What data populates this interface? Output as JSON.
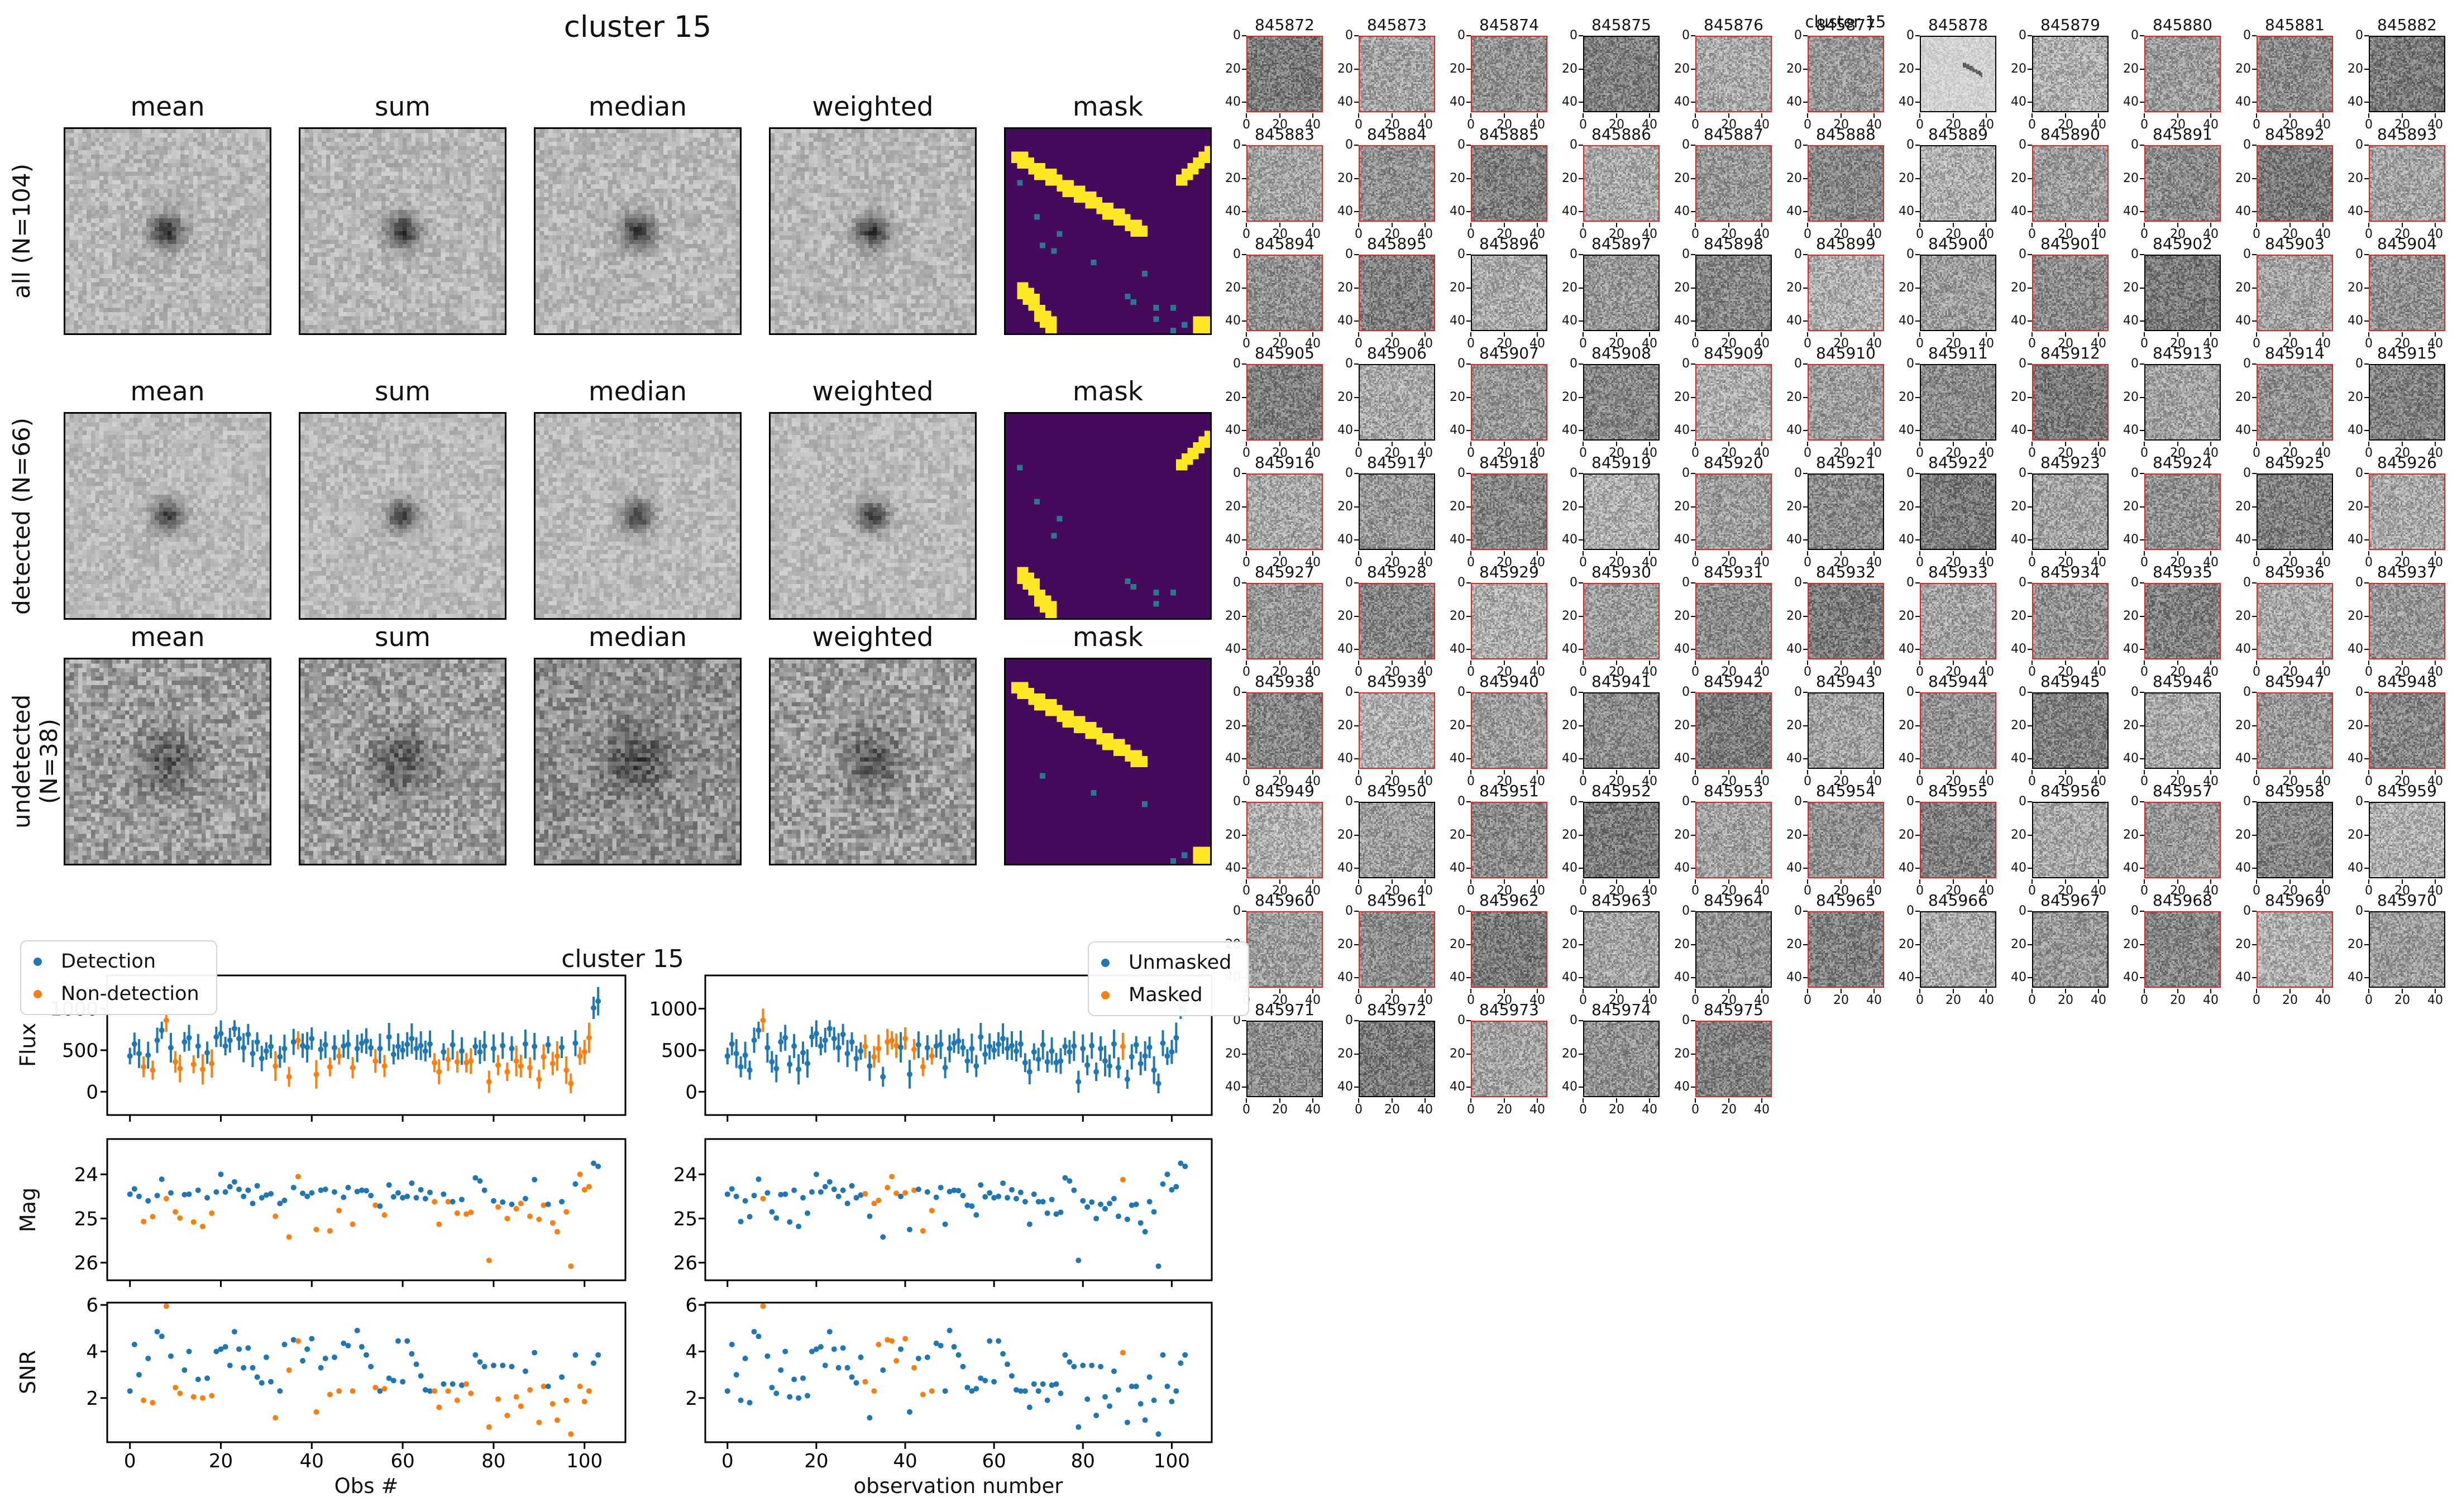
{
  "page": {
    "background": "#ffffff"
  },
  "left_figure": {
    "title": "cluster 15",
    "col_headers": [
      "mean",
      "sum",
      "median",
      "weighted",
      "mask"
    ],
    "rows": [
      {
        "label": "all (N=104)"
      },
      {
        "label": "detected (N=66)"
      },
      {
        "label": "undetected (N=38)"
      }
    ],
    "noise_rows": [
      {
        "base": 0.72,
        "noise": 0.1,
        "amp": 0.52,
        "sigma": 2.7
      },
      {
        "base": 0.73,
        "noise": 0.09,
        "amp": 0.48,
        "sigma": 2.5
      },
      {
        "base": 0.62,
        "noise": 0.17,
        "amp": 0.26,
        "sigma": 5.0
      }
    ]
  },
  "mask": {
    "colors": {
      "bg": "#450a5c",
      "streak": "#fde724",
      "dot": "#2a788e"
    },
    "streaks": {
      "main": [
        1,
        4,
        23,
        17
      ],
      "tr": [
        30,
        8,
        35,
        3
      ],
      "bl": [
        2,
        27,
        7,
        34
      ]
    },
    "corner": [
      33,
      33,
      3,
      3
    ],
    "rows": [
      {
        "streaks": [
          "main",
          "tr",
          "bl"
        ],
        "corner": true,
        "dots": [
          [
            2,
            9
          ],
          [
            5,
            15
          ],
          [
            9,
            18
          ],
          [
            6,
            20
          ],
          [
            8,
            21
          ],
          [
            15,
            23
          ],
          [
            24,
            25
          ],
          [
            21,
            29
          ],
          [
            22,
            30
          ],
          [
            26,
            31
          ],
          [
            29,
            31
          ],
          [
            26,
            33
          ],
          [
            31,
            34
          ],
          [
            29,
            35
          ]
        ]
      },
      {
        "streaks": [
          "tr",
          "bl"
        ],
        "corner": false,
        "dots": [
          [
            2,
            9
          ],
          [
            5,
            15
          ],
          [
            9,
            18
          ],
          [
            8,
            21
          ],
          [
            21,
            29
          ],
          [
            22,
            30
          ],
          [
            26,
            31
          ],
          [
            29,
            31
          ],
          [
            26,
            33
          ]
        ]
      },
      {
        "streaks": [
          "main"
        ],
        "corner": true,
        "dots": [
          [
            6,
            20
          ],
          [
            15,
            23
          ],
          [
            24,
            25
          ],
          [
            31,
            34
          ],
          [
            29,
            35
          ]
        ]
      }
    ]
  },
  "chart_data": {
    "type": "scatter",
    "title": "cluster 15",
    "ylabels": [
      "Flux",
      "Mag",
      "SNR"
    ],
    "xlabel_left": "Obs #",
    "xlabel_right": "observation number",
    "legend_left": [
      "Detection",
      "Non-detection"
    ],
    "legend_right": [
      "Unmasked",
      "Masked"
    ],
    "colors": {
      "detection": "#1f77b4",
      "nondetection": "#ff7f0e"
    },
    "yticks": {
      "flux": [
        0,
        500,
        1000
      ],
      "mag": [
        24,
        25,
        26
      ],
      "snr": [
        2,
        4,
        6
      ]
    },
    "xticks": [
      0,
      20,
      40,
      60,
      80,
      100
    ],
    "ylims": {
      "flux": [
        -280,
        1400
      ],
      "mag_top_to_bottom": [
        23.2,
        26.4
      ],
      "snr": [
        0.1,
        6.1
      ]
    },
    "xlim": [
      -5,
      109
    ],
    "columns": [
      "flux",
      "flux_err",
      "mag",
      "snr",
      "detected",
      "masked"
    ],
    "obs": [
      [
        430,
        100,
        24.45,
        2.3,
        1,
        0
      ],
      [
        575,
        137,
        24.33,
        4.3,
        1,
        0
      ],
      [
        460,
        174,
        24.5,
        3.0,
        1,
        0
      ],
      [
        300,
        126,
        25.07,
        1.9,
        0,
        0
      ],
      [
        440,
        163,
        24.6,
        3.7,
        1,
        0
      ],
      [
        260,
        115,
        24.96,
        1.8,
        0,
        0
      ],
      [
        620,
        152,
        24.48,
        4.85,
        1,
        0
      ],
      [
        740,
        104,
        24.11,
        4.65,
        1,
        0
      ],
      [
        860,
        141,
        24.55,
        5.95,
        0,
        1
      ],
      [
        530,
        178,
        24.42,
        3.8,
        1,
        0
      ],
      [
        360,
        130,
        24.85,
        2.45,
        0,
        0
      ],
      [
        280,
        167,
        24.99,
        2.2,
        0,
        0
      ],
      [
        600,
        119,
        24.46,
        3.2,
        1,
        0
      ],
      [
        650,
        156,
        24.45,
        4.0,
        1,
        0
      ],
      [
        330,
        108,
        25.08,
        2.05,
        0,
        0
      ],
      [
        550,
        145,
        24.36,
        2.8,
        1,
        0
      ],
      [
        270,
        182,
        25.18,
        2.0,
        0,
        0
      ],
      [
        470,
        134,
        24.53,
        2.85,
        1,
        0
      ],
      [
        340,
        171,
        24.88,
        2.1,
        0,
        0
      ],
      [
        660,
        123,
        24.4,
        4.0,
        1,
        0
      ],
      [
        700,
        160,
        24.0,
        4.1,
        1,
        0
      ],
      [
        550,
        112,
        24.4,
        4.2,
        1,
        0
      ],
      [
        620,
        149,
        24.28,
        3.4,
        1,
        0
      ],
      [
        760,
        101,
        24.17,
        4.85,
        1,
        0
      ],
      [
        640,
        138,
        24.34,
        4.1,
        1,
        0
      ],
      [
        530,
        175,
        24.5,
        3.3,
        1,
        0
      ],
      [
        690,
        127,
        24.36,
        4.15,
        1,
        0
      ],
      [
        460,
        164,
        24.66,
        3.3,
        1,
        0
      ],
      [
        600,
        116,
        24.26,
        2.9,
        1,
        0
      ],
      [
        400,
        153,
        24.53,
        2.65,
        1,
        0
      ],
      [
        490,
        105,
        24.47,
        3.75,
        1,
        0
      ],
      [
        545,
        142,
        24.44,
        2.7,
        1,
        1
      ],
      [
        310,
        179,
        24.95,
        1.15,
        0,
        0
      ],
      [
        420,
        131,
        24.66,
        2.3,
        1,
        1
      ],
      [
        520,
        168,
        24.59,
        4.3,
        1,
        1
      ],
      [
        180,
        120,
        25.42,
        3.2,
        0,
        0
      ],
      [
        600,
        157,
        24.3,
        4.5,
        1,
        1
      ],
      [
        620,
        109,
        24.05,
        4.45,
        0,
        1
      ],
      [
        555,
        146,
        24.43,
        3.6,
        1,
        1
      ],
      [
        535,
        183,
        24.5,
        4.1,
        1,
        0
      ],
      [
        640,
        135,
        24.42,
        4.55,
        1,
        1
      ],
      [
        210,
        172,
        25.25,
        1.4,
        0,
        0
      ],
      [
        510,
        124,
        24.36,
        3.3,
        1,
        1
      ],
      [
        565,
        161,
        24.34,
        3.7,
        1,
        0
      ],
      [
        300,
        113,
        25.28,
        2.15,
        0,
        1
      ],
      [
        530,
        150,
        24.4,
        3.75,
        1,
        0
      ],
      [
        430,
        102,
        24.82,
        2.3,
        0,
        1
      ],
      [
        550,
        139,
        24.52,
        4.35,
        1,
        0
      ],
      [
        570,
        176,
        24.3,
        4.25,
        1,
        0
      ],
      [
        290,
        128,
        25.13,
        2.3,
        0,
        0
      ],
      [
        520,
        165,
        24.39,
        4.9,
        1,
        0
      ],
      [
        585,
        117,
        24.36,
        4.2,
        1,
        0
      ],
      [
        610,
        154,
        24.37,
        3.85,
        1,
        0
      ],
      [
        530,
        106,
        24.48,
        3.35,
        1,
        0
      ],
      [
        370,
        143,
        24.7,
        2.45,
        0,
        0
      ],
      [
        520,
        180,
        24.72,
        2.3,
        1,
        0
      ],
      [
        310,
        132,
        24.92,
        2.4,
        0,
        0
      ],
      [
        660,
        169,
        24.24,
        2.85,
        1,
        0
      ],
      [
        450,
        121,
        24.51,
        2.75,
        1,
        0
      ],
      [
        545,
        158,
        24.42,
        4.45,
        1,
        0
      ],
      [
        500,
        110,
        24.53,
        2.7,
        1,
        0
      ],
      [
        570,
        147,
        24.5,
        4.45,
        1,
        0
      ],
      [
        640,
        184,
        24.2,
        3.9,
        1,
        0
      ],
      [
        520,
        136,
        24.53,
        3.45,
        1,
        0
      ],
      [
        555,
        173,
        24.35,
        2.95,
        1,
        0
      ],
      [
        490,
        125,
        24.55,
        2.35,
        1,
        0
      ],
      [
        575,
        162,
        24.41,
        2.3,
        1,
        0
      ],
      [
        350,
        114,
        24.62,
        2.3,
        0,
        0
      ],
      [
        240,
        151,
        25.13,
        1.6,
        0,
        0
      ],
      [
        480,
        103,
        24.45,
        2.6,
        1,
        0
      ],
      [
        390,
        140,
        24.62,
        2.3,
        0,
        0
      ],
      [
        565,
        177,
        24.62,
        2.6,
        1,
        0
      ],
      [
        360,
        129,
        24.88,
        1.9,
        0,
        0
      ],
      [
        490,
        166,
        24.57,
        2.55,
        1,
        0
      ],
      [
        350,
        118,
        24.9,
        2.6,
        0,
        0
      ],
      [
        370,
        155,
        24.86,
        2.2,
        0,
        0
      ],
      [
        545,
        107,
        24.08,
        3.85,
        1,
        0
      ],
      [
        480,
        144,
        24.15,
        3.55,
        1,
        0
      ],
      [
        550,
        181,
        24.36,
        3.35,
        1,
        0
      ],
      [
        120,
        133,
        25.95,
        0.75,
        0,
        0
      ],
      [
        520,
        170,
        24.6,
        3.4,
        1,
        0
      ],
      [
        320,
        122,
        24.74,
        1.95,
        0,
        0
      ],
      [
        555,
        159,
        24.63,
        3.4,
        1,
        0
      ],
      [
        240,
        111,
        25.0,
        1.25,
        0,
        0
      ],
      [
        520,
        148,
        24.68,
        3.35,
        1,
        0
      ],
      [
        370,
        185,
        24.78,
        2.05,
        0,
        0
      ],
      [
        310,
        137,
        24.66,
        1.65,
        0,
        0
      ],
      [
        575,
        174,
        24.55,
        3.15,
        1,
        0
      ],
      [
        290,
        126,
        24.95,
        2.35,
        0,
        0
      ],
      [
        545,
        163,
        24.12,
        3.95,
        1,
        1
      ],
      [
        150,
        115,
        25.02,
        0.95,
        0,
        0
      ],
      [
        420,
        152,
        24.7,
        2.5,
        0,
        0
      ],
      [
        565,
        104,
        24.68,
        2.5,
        1,
        0
      ],
      [
        340,
        141,
        25.1,
        1.75,
        0,
        0
      ],
      [
        430,
        178,
        25.3,
        1.05,
        0,
        0
      ],
      [
        535,
        130,
        24.62,
        2.9,
        1,
        0
      ],
      [
        260,
        167,
        24.85,
        1.9,
        0,
        0
      ],
      [
        100,
        119,
        26.08,
        0.45,
        0,
        0
      ],
      [
        585,
        156,
        24.22,
        3.85,
        1,
        0
      ],
      [
        430,
        108,
        24.0,
        2.5,
        0,
        0
      ],
      [
        480,
        145,
        24.35,
        1.85,
        0,
        0
      ],
      [
        650,
        182,
        24.28,
        2.3,
        0,
        0
      ],
      [
        1010,
        134,
        23.75,
        3.5,
        1,
        0
      ],
      [
        1090,
        171,
        23.82,
        3.85,
        1,
        0
      ]
    ]
  },
  "right_figure": {
    "title": "cluster 15",
    "tick_values": [
      0,
      20,
      40
    ],
    "border_red": "#e02424",
    "border_black": "#000000",
    "pale_cell_index": 6,
    "black_border_cells": [
      3,
      6,
      7,
      10,
      17,
      24,
      25,
      26,
      28,
      30,
      34,
      36,
      39,
      41,
      43,
      45,
      47,
      49,
      50,
      51,
      53,
      69,
      71,
      73,
      74,
      78,
      80,
      84,
      86,
      87,
      91,
      92,
      94,
      95,
      98,
      99,
      100,
      102
    ],
    "cell_ids": [
      "845872",
      "845873",
      "845874",
      "845875",
      "845876",
      "845877",
      "845878",
      "845879",
      "845880",
      "845881",
      "845882",
      "845883",
      "845884",
      "845885",
      "845886",
      "845887",
      "845888",
      "845889",
      "845890",
      "845891",
      "845892",
      "845893",
      "845894",
      "845895",
      "845896",
      "845897",
      "845898",
      "845899",
      "845900",
      "845901",
      "845902",
      "845903",
      "845904",
      "845905",
      "845906",
      "845907",
      "845908",
      "845909",
      "845910",
      "845911",
      "845912",
      "845913",
      "845914",
      "845915",
      "845916",
      "845917",
      "845918",
      "845919",
      "845920",
      "845921",
      "845922",
      "845923",
      "845924",
      "845925",
      "845926",
      "845927",
      "845928",
      "845929",
      "845930",
      "845931",
      "845932",
      "845933",
      "845934",
      "845935",
      "845936",
      "845937",
      "845938",
      "845939",
      "845940",
      "845941",
      "845942",
      "845943",
      "845944",
      "845945",
      "845946",
      "845947",
      "845948",
      "845949",
      "845950",
      "845951",
      "845952",
      "845953",
      "845954",
      "845955",
      "845956",
      "845957",
      "845958",
      "845959",
      "845960",
      "845961",
      "845962",
      "845963",
      "845964",
      "845965",
      "845966",
      "845967",
      "845968",
      "845969",
      "845970",
      "845971",
      "845972",
      "845973",
      "845974",
      "845975"
    ]
  }
}
